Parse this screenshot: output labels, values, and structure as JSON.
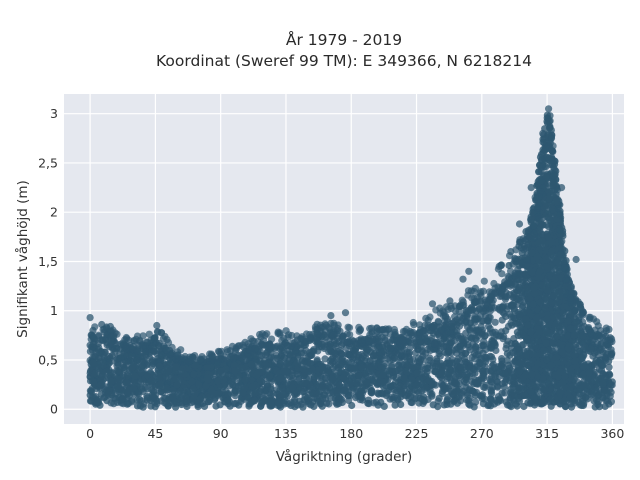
{
  "chart_data": {
    "type": "scatter",
    "title_line1": "År 1979 - 2019",
    "title_line2": "Koordinat (Sweref 99 TM): E 349366, N 6218214",
    "xlabel": "Vågriktning (grader)",
    "ylabel": "Signifikant våghöjd (m)",
    "xlim": [
      -18,
      368
    ],
    "ylim": [
      -0.15,
      3.2
    ],
    "x_ticks": [
      {
        "value": 0,
        "label": "0"
      },
      {
        "value": 45,
        "label": "45"
      },
      {
        "value": 90,
        "label": "90"
      },
      {
        "value": 135,
        "label": "135"
      },
      {
        "value": 180,
        "label": "180"
      },
      {
        "value": 225,
        "label": "225"
      },
      {
        "value": 270,
        "label": "270"
      },
      {
        "value": 315,
        "label": "315"
      },
      {
        "value": 360,
        "label": "360"
      }
    ],
    "y_ticks": [
      {
        "value": 0,
        "label": "0"
      },
      {
        "value": 0.5,
        "label": "0,5"
      },
      {
        "value": 1,
        "label": "1"
      },
      {
        "value": 1.5,
        "label": "1,5"
      },
      {
        "value": 2,
        "label": "2"
      },
      {
        "value": 2.5,
        "label": "2,5"
      },
      {
        "value": 3,
        "label": "3"
      }
    ],
    "grid": true,
    "marker_color": "#2e5770",
    "plot_background": "#e5e8ef",
    "envelope": [
      {
        "x": 0,
        "y": 0.88
      },
      {
        "x": 10,
        "y": 0.85
      },
      {
        "x": 20,
        "y": 0.78
      },
      {
        "x": 30,
        "y": 0.72
      },
      {
        "x": 45,
        "y": 0.85
      },
      {
        "x": 60,
        "y": 0.62
      },
      {
        "x": 75,
        "y": 0.55
      },
      {
        "x": 90,
        "y": 0.6
      },
      {
        "x": 105,
        "y": 0.68
      },
      {
        "x": 120,
        "y": 0.78
      },
      {
        "x": 135,
        "y": 0.8
      },
      {
        "x": 150,
        "y": 0.85
      },
      {
        "x": 165,
        "y": 0.92
      },
      {
        "x": 180,
        "y": 0.82
      },
      {
        "x": 195,
        "y": 0.85
      },
      {
        "x": 210,
        "y": 0.82
      },
      {
        "x": 225,
        "y": 0.9
      },
      {
        "x": 240,
        "y": 1.05
      },
      {
        "x": 255,
        "y": 1.1
      },
      {
        "x": 265,
        "y": 1.3
      },
      {
        "x": 275,
        "y": 1.3
      },
      {
        "x": 285,
        "y": 1.5
      },
      {
        "x": 295,
        "y": 1.7
      },
      {
        "x": 300,
        "y": 1.8
      },
      {
        "x": 305,
        "y": 2.0
      },
      {
        "x": 310,
        "y": 2.55
      },
      {
        "x": 313,
        "y": 2.82
      },
      {
        "x": 316,
        "y": 3.05
      },
      {
        "x": 320,
        "y": 2.6
      },
      {
        "x": 325,
        "y": 1.9
      },
      {
        "x": 330,
        "y": 1.3
      },
      {
        "x": 340,
        "y": 1.0
      },
      {
        "x": 350,
        "y": 0.9
      },
      {
        "x": 358,
        "y": 0.85
      }
    ],
    "outliers": [
      {
        "x": 0,
        "y": 0.93
      },
      {
        "x": 2,
        "y": 0.8
      },
      {
        "x": 8,
        "y": 0.86
      },
      {
        "x": 14,
        "y": 0.84
      },
      {
        "x": 46,
        "y": 0.85
      },
      {
        "x": 166,
        "y": 0.95
      },
      {
        "x": 176,
        "y": 0.98
      },
      {
        "x": 236,
        "y": 1.07
      },
      {
        "x": 248,
        "y": 1.1
      },
      {
        "x": 257,
        "y": 1.32
      },
      {
        "x": 261,
        "y": 1.4
      },
      {
        "x": 282,
        "y": 1.45
      },
      {
        "x": 290,
        "y": 1.6
      },
      {
        "x": 296,
        "y": 1.88
      },
      {
        "x": 304,
        "y": 2.25
      },
      {
        "x": 312,
        "y": 2.8
      },
      {
        "x": 316,
        "y": 3.05
      },
      {
        "x": 317,
        "y": 2.98
      },
      {
        "x": 318,
        "y": 2.75
      },
      {
        "x": 325,
        "y": 2.25
      },
      {
        "x": 335,
        "y": 1.52
      }
    ]
  }
}
